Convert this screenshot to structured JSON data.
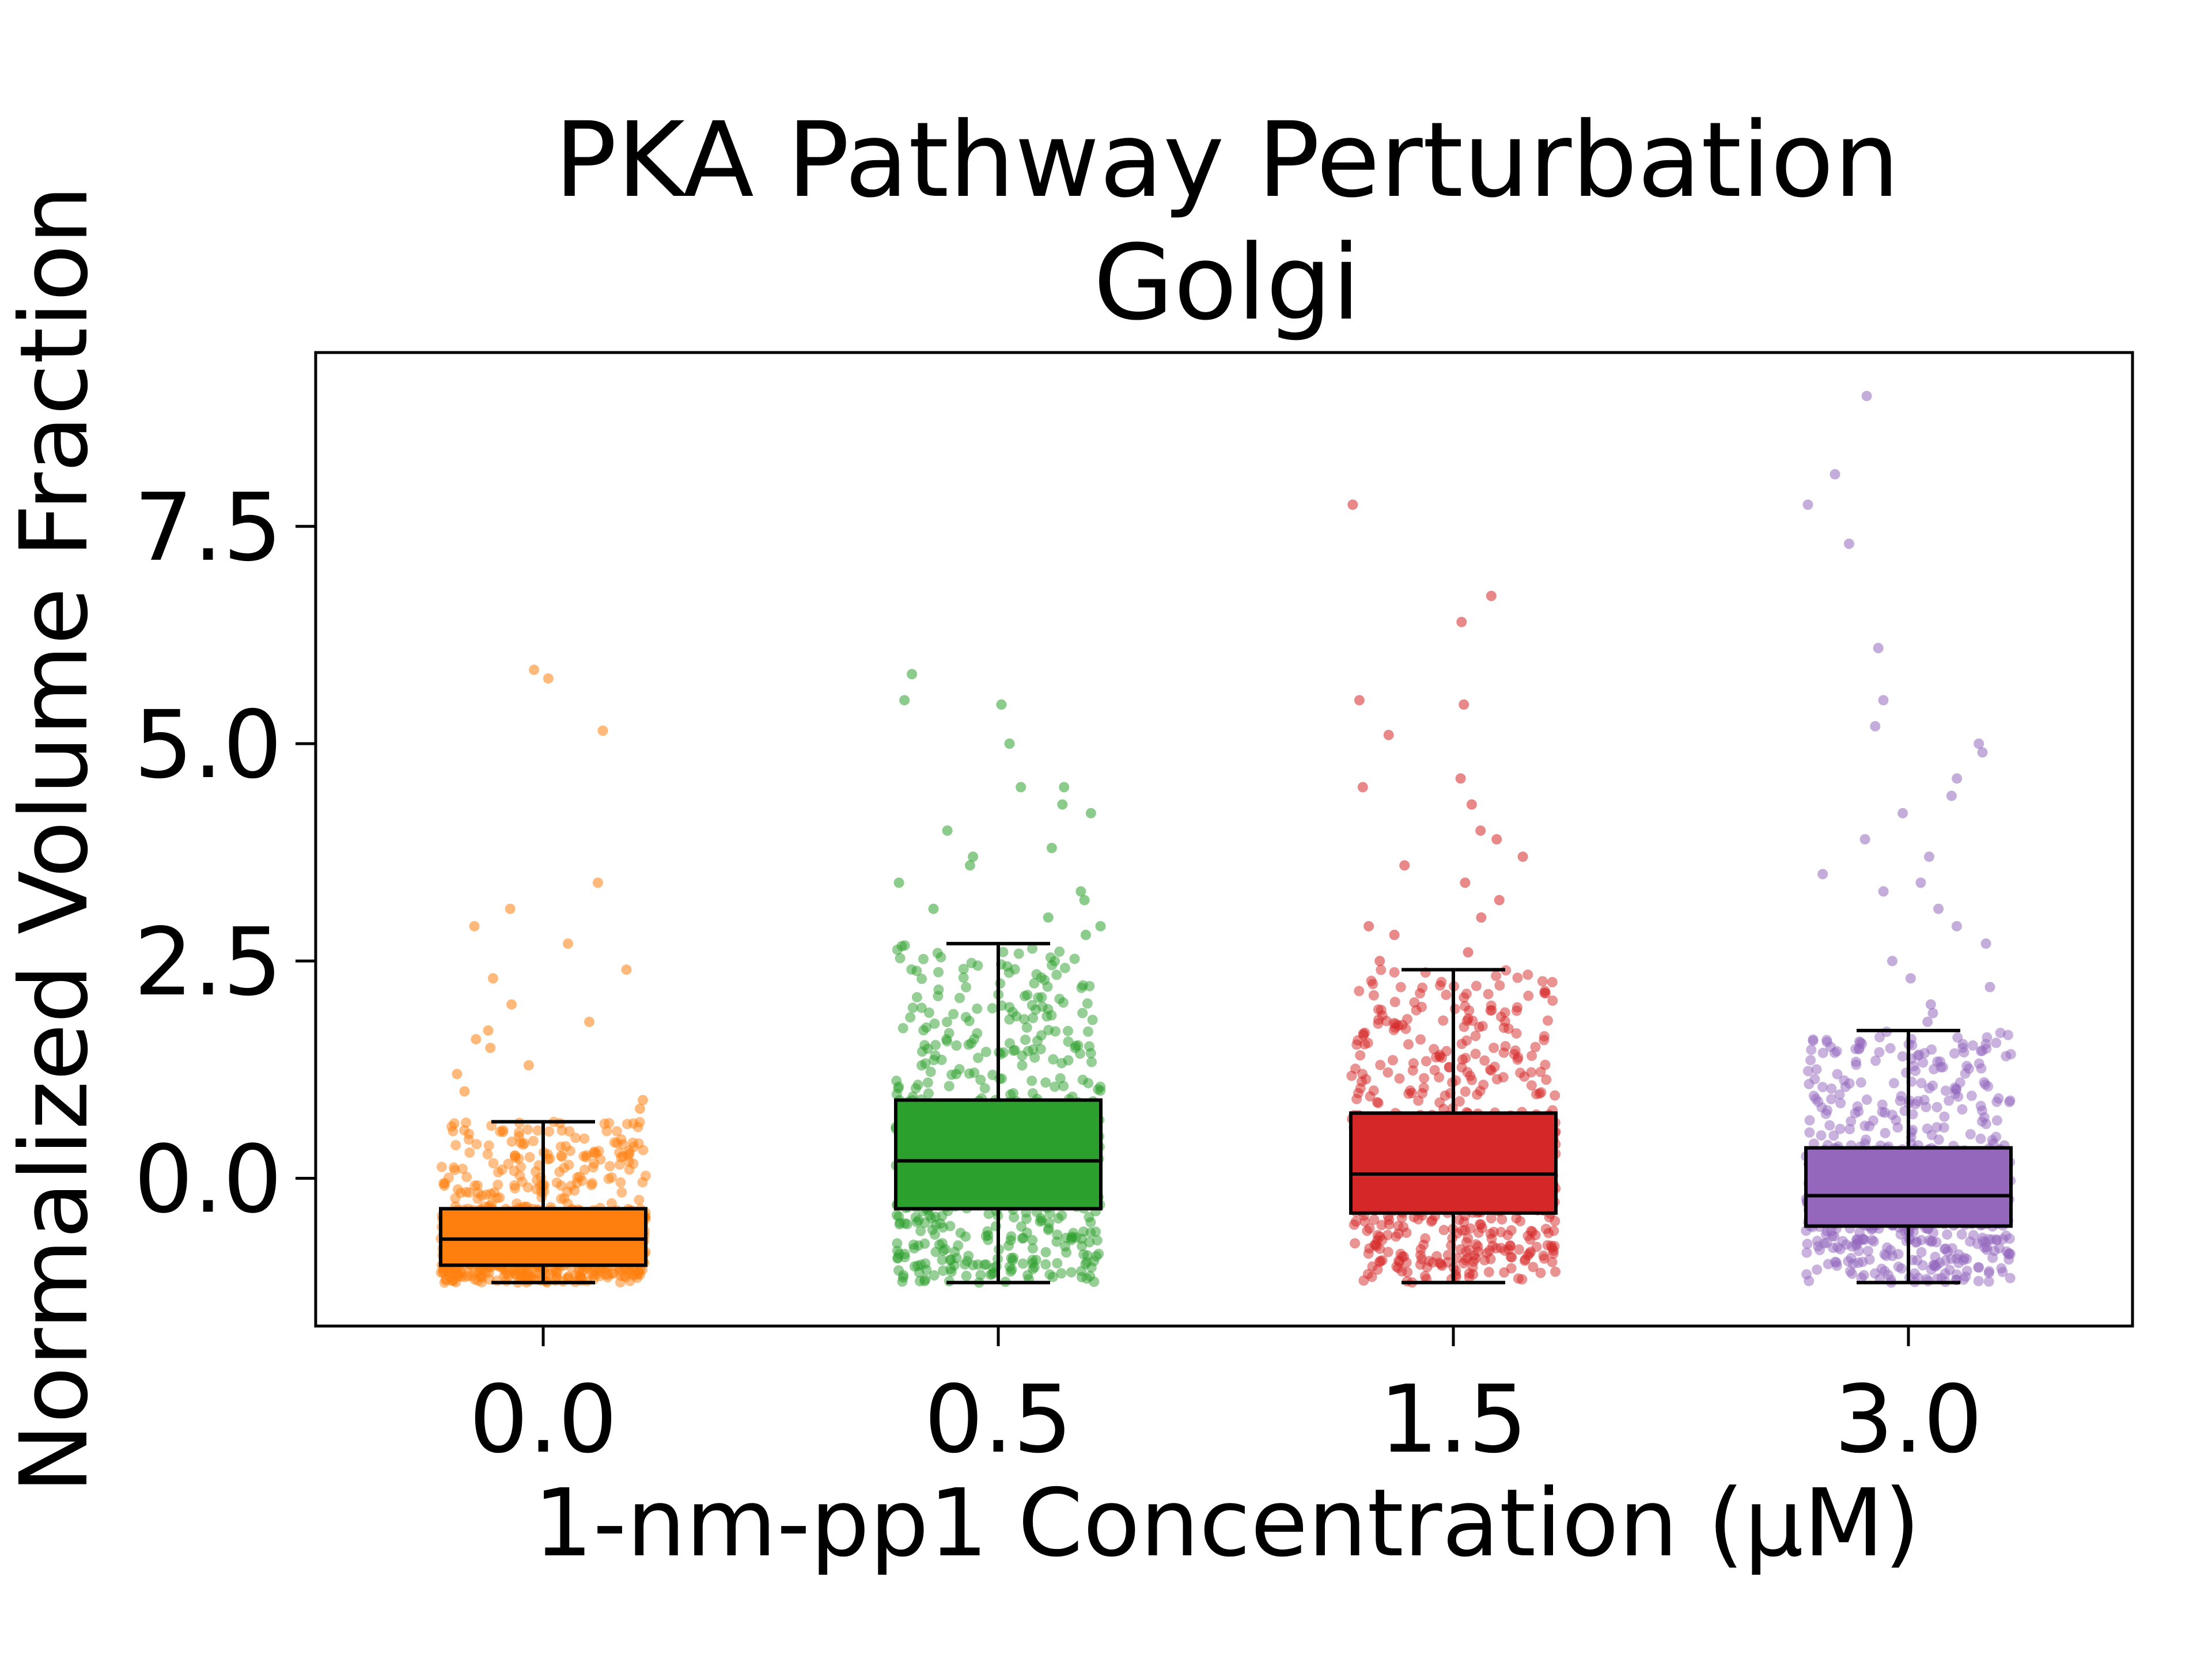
{
  "chart_data": {
    "type": "box",
    "title": "PKA Pathway Perturbation",
    "subtitle": "Golgi",
    "xlabel": "1-nm-pp1 Concentration (μM)",
    "ylabel": "Normalized Volume Fraction",
    "categories": [
      "0.0",
      "0.5",
      "1.5",
      "3.0"
    ],
    "ylim": [
      -1.7,
      9.5
    ],
    "yticks": [
      0.0,
      2.5,
      5.0,
      7.5
    ],
    "ytick_labels": [
      "0.0",
      "2.5",
      "5.0",
      "7.5"
    ],
    "grid": false,
    "legend": "none",
    "series": [
      {
        "category": "0.0",
        "color": "#ff7f0e",
        "whisker_low": -1.2,
        "q1": -1.0,
        "median": -0.7,
        "q3": -0.35,
        "whisker_high": 0.65,
        "outliers": [
          0.8,
          0.9,
          1.0,
          1.2,
          1.3,
          1.5,
          1.6,
          1.7,
          1.8,
          2.0,
          2.3,
          2.4,
          2.7,
          2.9,
          3.1,
          3.4,
          5.15,
          5.75,
          5.85
        ]
      },
      {
        "category": "0.5",
        "color": "#2ca02c",
        "whisker_low": -1.2,
        "q1": -0.35,
        "median": 0.2,
        "q3": 0.9,
        "whisker_high": 2.7,
        "outliers": [
          2.8,
          2.9,
          3.0,
          3.1,
          3.2,
          3.3,
          3.4,
          3.6,
          3.7,
          3.8,
          4.0,
          4.2,
          4.3,
          4.5,
          4.5,
          5.0,
          5.45,
          5.5,
          5.8
        ]
      },
      {
        "category": "1.5",
        "color": "#d62728",
        "whisker_low": -1.2,
        "q1": -0.4,
        "median": 0.05,
        "q3": 0.75,
        "whisker_high": 2.4,
        "outliers": [
          2.5,
          2.6,
          2.8,
          2.9,
          3.0,
          3.2,
          3.4,
          3.6,
          3.7,
          3.9,
          4.0,
          4.3,
          4.5,
          4.6,
          5.1,
          5.45,
          5.5,
          6.4,
          6.7,
          7.75
        ]
      },
      {
        "category": "3.0",
        "color": "#9467bd",
        "whisker_low": -1.2,
        "q1": -0.55,
        "median": -0.2,
        "q3": 0.35,
        "whisker_high": 1.7,
        "outliers": [
          1.8,
          1.9,
          2.0,
          2.2,
          2.3,
          2.5,
          2.7,
          2.9,
          3.1,
          3.3,
          3.4,
          3.5,
          3.7,
          3.9,
          4.2,
          4.4,
          4.6,
          4.9,
          5.0,
          5.2,
          5.5,
          6.1,
          7.3,
          7.75,
          8.1,
          9.0
        ]
      }
    ]
  }
}
